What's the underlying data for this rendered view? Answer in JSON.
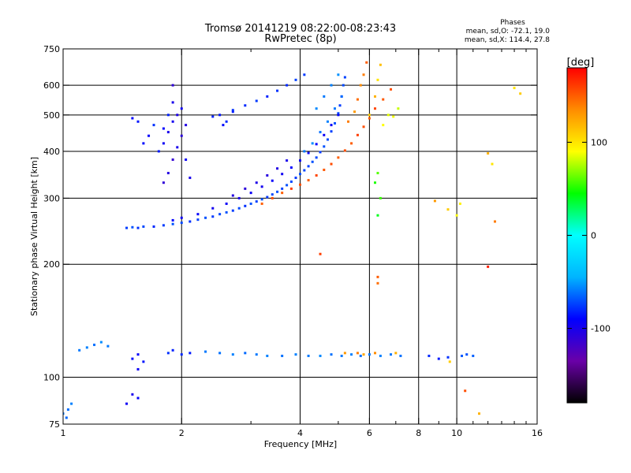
{
  "chart_data": {
    "type": "scatter",
    "title": "Tromsø 20141219 08:22:00-08:23:43",
    "subtitle": "RwPretec (8p)",
    "xlabel": "Frequency [MHz]",
    "ylabel": "Stationary phase Virtual Height [km]",
    "x_scale": "log",
    "y_scale": "log",
    "xlim": [
      1,
      16
    ],
    "ylim": [
      75,
      750
    ],
    "x_ticks": [
      1,
      2,
      4,
      6,
      8,
      10,
      16
    ],
    "x_tick_labels": [
      "1",
      "2",
      "4",
      "6",
      "8",
      "10",
      "16"
    ],
    "x_minor_ticks": [
      3,
      5,
      7,
      9,
      11,
      12,
      13,
      14,
      15
    ],
    "y_ticks": [
      75,
      100,
      200,
      300,
      400,
      500,
      600,
      750
    ],
    "y_tick_labels": [
      "75",
      "100",
      "200",
      "300",
      "400",
      "500",
      "600",
      "750"
    ],
    "x_gridlines": [
      2,
      4,
      6,
      8,
      10
    ],
    "y_gridlines": [
      100,
      200,
      300,
      400,
      500,
      600
    ],
    "grid": true,
    "colorbar": {
      "label": "[deg]",
      "range": [
        -180,
        180
      ],
      "ticks": [
        100,
        0,
        -100
      ],
      "tick_labels": [
        "100",
        "0",
        "-100"
      ],
      "colors": [
        "#000000",
        "#6a00a8",
        "#0000ff",
        "#00b4ff",
        "#00ffff",
        "#00ff00",
        "#ffff00",
        "#ff8c00",
        "#ff0000"
      ]
    },
    "stats_heading": "Phases",
    "stats": [
      "mean, sd,O: -72.1, 19.0",
      "mean, sd,X: 114.4, 27.8"
    ],
    "series": [
      {
        "points": [
          [
            1.45,
            250,
            -75
          ],
          [
            1.5,
            251,
            -70
          ],
          [
            1.55,
            250,
            -78
          ],
          [
            1.6,
            252,
            -72
          ],
          [
            1.7,
            252,
            -80
          ],
          [
            1.8,
            254,
            -75
          ],
          [
            1.9,
            256,
            -70
          ],
          [
            2.0,
            258,
            -72
          ],
          [
            2.1,
            260,
            -78
          ],
          [
            2.2,
            263,
            -74
          ],
          [
            2.3,
            266,
            -70
          ],
          [
            2.4,
            268,
            -76
          ],
          [
            2.5,
            272,
            -72
          ],
          [
            2.6,
            275,
            -70
          ],
          [
            2.7,
            278,
            -75
          ],
          [
            2.8,
            282,
            -72
          ],
          [
            2.9,
            286,
            -78
          ],
          [
            3.0,
            290,
            -70
          ],
          [
            3.1,
            294,
            -74
          ],
          [
            3.2,
            298,
            -70
          ],
          [
            3.3,
            302,
            -76
          ],
          [
            3.4,
            307,
            -72
          ],
          [
            3.5,
            312,
            -70
          ],
          [
            3.6,
            318,
            -74
          ],
          [
            3.7,
            325,
            -70
          ],
          [
            3.8,
            332,
            -72
          ],
          [
            3.9,
            340,
            -76
          ],
          [
            4.0,
            348,
            -70
          ],
          [
            4.1,
            356,
            -72
          ],
          [
            4.2,
            365,
            -74
          ],
          [
            4.3,
            375,
            -70
          ],
          [
            4.4,
            385,
            -72
          ],
          [
            4.5,
            398,
            -76
          ],
          [
            4.6,
            412,
            -70
          ],
          [
            4.7,
            430,
            -72
          ],
          [
            4.8,
            452,
            -74
          ],
          [
            4.9,
            475,
            -70
          ],
          [
            5.0,
            505,
            -72
          ],
          [
            5.05,
            530,
            -75
          ],
          [
            5.1,
            560,
            -70
          ],
          [
            5.15,
            600,
            -72
          ],
          [
            5.2,
            630,
            -74
          ],
          [
            1.9,
            262,
            -90
          ],
          [
            2.0,
            266,
            -95
          ],
          [
            2.2,
            272,
            -92
          ],
          [
            2.4,
            282,
            -98
          ],
          [
            2.6,
            290,
            -94
          ],
          [
            2.8,
            300,
            -100
          ],
          [
            3.0,
            310,
            -95
          ],
          [
            3.2,
            322,
            -98
          ],
          [
            3.4,
            334,
            -92
          ],
          [
            3.6,
            348,
            -96
          ],
          [
            3.8,
            362,
            -90
          ],
          [
            4.0,
            378,
            -94
          ],
          [
            4.2,
            396,
            -92
          ],
          [
            4.4,
            418,
            -90
          ],
          [
            4.6,
            442,
            -94
          ],
          [
            4.8,
            470,
            -92
          ],
          [
            5.0,
            500,
            -88
          ],
          [
            2.7,
            305,
            -105
          ],
          [
            2.9,
            318,
            -108
          ],
          [
            3.1,
            330,
            -102
          ],
          [
            3.3,
            345,
            -106
          ],
          [
            3.5,
            360,
            -104
          ],
          [
            3.7,
            378,
            -100
          ],
          [
            1.8,
            330,
            -110
          ],
          [
            1.85,
            350,
            -105
          ],
          [
            1.9,
            380,
            -112
          ],
          [
            1.95,
            410,
            -100
          ],
          [
            2.0,
            440,
            -108
          ],
          [
            2.05,
            470,
            -104
          ],
          [
            1.8,
            420,
            -95
          ],
          [
            1.85,
            450,
            -100
          ],
          [
            1.9,
            480,
            -98
          ],
          [
            1.95,
            500,
            -102
          ],
          [
            2.0,
            520,
            -96
          ],
          [
            1.9,
            540,
            -100
          ],
          [
            1.75,
            400,
            -85
          ],
          [
            1.8,
            460,
            -90
          ],
          [
            1.85,
            500,
            -82
          ],
          [
            1.9,
            600,
            -110
          ],
          [
            2.05,
            380,
            -95
          ],
          [
            2.1,
            340,
            -100
          ],
          [
            1.6,
            420,
            -88
          ],
          [
            1.65,
            440,
            -92
          ],
          [
            1.55,
            480,
            -85
          ],
          [
            1.5,
            490,
            -90
          ],
          [
            1.7,
            470,
            -78
          ],
          [
            2.4,
            495,
            -82
          ],
          [
            2.5,
            500,
            -85
          ],
          [
            2.6,
            480,
            -80
          ],
          [
            2.7,
            510,
            -84
          ],
          [
            2.55,
            470,
            -88
          ],
          [
            2.7,
            515,
            -78
          ],
          [
            2.9,
            530,
            -80
          ],
          [
            3.1,
            545,
            -76
          ],
          [
            3.3,
            560,
            -82
          ],
          [
            3.5,
            580,
            -78
          ],
          [
            3.7,
            600,
            -80
          ],
          [
            3.9,
            620,
            -74
          ],
          [
            4.1,
            640,
            -76
          ],
          [
            4.1,
            400,
            -60
          ],
          [
            4.3,
            420,
            -55
          ],
          [
            4.5,
            450,
            -62
          ],
          [
            4.7,
            480,
            -58
          ],
          [
            4.9,
            520,
            -60
          ],
          [
            5.1,
            560,
            -64
          ],
          [
            4.4,
            520,
            -56
          ],
          [
            4.6,
            560,
            -60
          ],
          [
            4.8,
            600,
            -58
          ],
          [
            5.0,
            640,
            -54
          ],
          [
            1.1,
            118,
            -60
          ],
          [
            1.15,
            120,
            -58
          ],
          [
            1.2,
            122,
            -62
          ],
          [
            1.25,
            124,
            -55
          ],
          [
            1.3,
            121,
            -60
          ],
          [
            1.5,
            112,
            -88
          ],
          [
            1.55,
            115,
            -92
          ],
          [
            1.6,
            110,
            -85
          ],
          [
            1.55,
            105,
            -95
          ],
          [
            1.85,
            116,
            -78
          ],
          [
            1.9,
            118,
            -82
          ],
          [
            2.0,
            115,
            -80
          ],
          [
            2.1,
            116,
            -84
          ],
          [
            2.3,
            117,
            -60
          ],
          [
            2.5,
            116,
            -62
          ],
          [
            2.7,
            115,
            -58
          ],
          [
            2.9,
            116,
            -64
          ],
          [
            3.1,
            115,
            -60
          ],
          [
            3.3,
            114,
            -58
          ],
          [
            3.6,
            114,
            -62
          ],
          [
            3.9,
            115,
            -58
          ],
          [
            4.2,
            114,
            -60
          ],
          [
            4.5,
            114,
            -56
          ],
          [
            4.8,
            115,
            -62
          ],
          [
            5.1,
            114,
            -60
          ],
          [
            5.4,
            115,
            -58
          ],
          [
            5.7,
            114,
            -62
          ],
          [
            6.0,
            115,
            -60
          ],
          [
            6.4,
            114,
            -58
          ],
          [
            6.8,
            115,
            -60
          ],
          [
            7.2,
            114,
            -62
          ],
          [
            8.5,
            114,
            -80
          ],
          [
            9.0,
            112,
            -84
          ],
          [
            9.5,
            113,
            -78
          ],
          [
            10.3,
            114,
            -68
          ],
          [
            10.6,
            115,
            -70
          ],
          [
            11.0,
            114,
            -66
          ],
          [
            1.0,
            80,
            -60
          ],
          [
            1.03,
            82,
            -62
          ],
          [
            1.05,
            85,
            -58
          ],
          [
            1.02,
            78,
            -64
          ],
          [
            1.45,
            85,
            -95
          ],
          [
            1.5,
            90,
            -100
          ],
          [
            1.55,
            88,
            -92
          ]
        ]
      },
      {
        "points": [
          [
            3.2,
            290,
            150
          ],
          [
            3.4,
            300,
            155
          ],
          [
            3.6,
            310,
            150
          ],
          [
            3.8,
            318,
            160
          ],
          [
            4.0,
            326,
            155
          ],
          [
            4.2,
            335,
            150
          ],
          [
            4.4,
            345,
            158
          ],
          [
            4.6,
            357,
            152
          ],
          [
            4.8,
            370,
            156
          ],
          [
            5.0,
            385,
            150
          ],
          [
            5.2,
            402,
            155
          ],
          [
            5.4,
            420,
            150
          ],
          [
            5.6,
            442,
            160
          ],
          [
            5.8,
            465,
            155
          ],
          [
            6.0,
            490,
            150
          ],
          [
            6.2,
            520,
            158
          ],
          [
            6.5,
            550,
            152
          ],
          [
            6.8,
            585,
            155
          ],
          [
            5.3,
            480,
            140
          ],
          [
            5.5,
            510,
            130
          ],
          [
            5.6,
            550,
            145
          ],
          [
            5.7,
            600,
            135
          ],
          [
            5.8,
            640,
            140
          ],
          [
            5.9,
            690,
            150
          ],
          [
            6.0,
            500,
            110
          ],
          [
            6.2,
            560,
            120
          ],
          [
            6.3,
            620,
            100
          ],
          [
            6.4,
            680,
            115
          ],
          [
            6.5,
            470,
            90
          ],
          [
            6.7,
            500,
            85
          ],
          [
            6.9,
            495,
            88
          ],
          [
            7.1,
            520,
            80
          ],
          [
            6.3,
            350,
            60
          ],
          [
            6.4,
            300,
            55
          ],
          [
            6.2,
            330,
            50
          ],
          [
            6.3,
            270,
            40
          ],
          [
            8.8,
            295,
            130
          ],
          [
            9.5,
            280,
            110
          ],
          [
            10.0,
            270,
            90
          ],
          [
            10.2,
            290,
            95
          ],
          [
            12.0,
            395,
            120
          ],
          [
            12.3,
            370,
            100
          ],
          [
            12.5,
            260,
            140
          ],
          [
            14.0,
            590,
            100
          ],
          [
            14.5,
            570,
            110
          ],
          [
            6.3,
            185,
            150
          ],
          [
            6.3,
            178,
            145
          ],
          [
            4.5,
            213,
            160
          ],
          [
            10.5,
            92,
            155
          ],
          [
            12.0,
            197,
            170
          ],
          [
            11.4,
            80,
            120
          ],
          [
            6.2,
            116,
            135
          ],
          [
            5.6,
            116,
            140
          ],
          [
            5.2,
            116,
            130
          ],
          [
            5.8,
            115,
            125
          ],
          [
            7.0,
            116,
            120
          ],
          [
            9.6,
            110,
            110
          ]
        ]
      }
    ]
  }
}
